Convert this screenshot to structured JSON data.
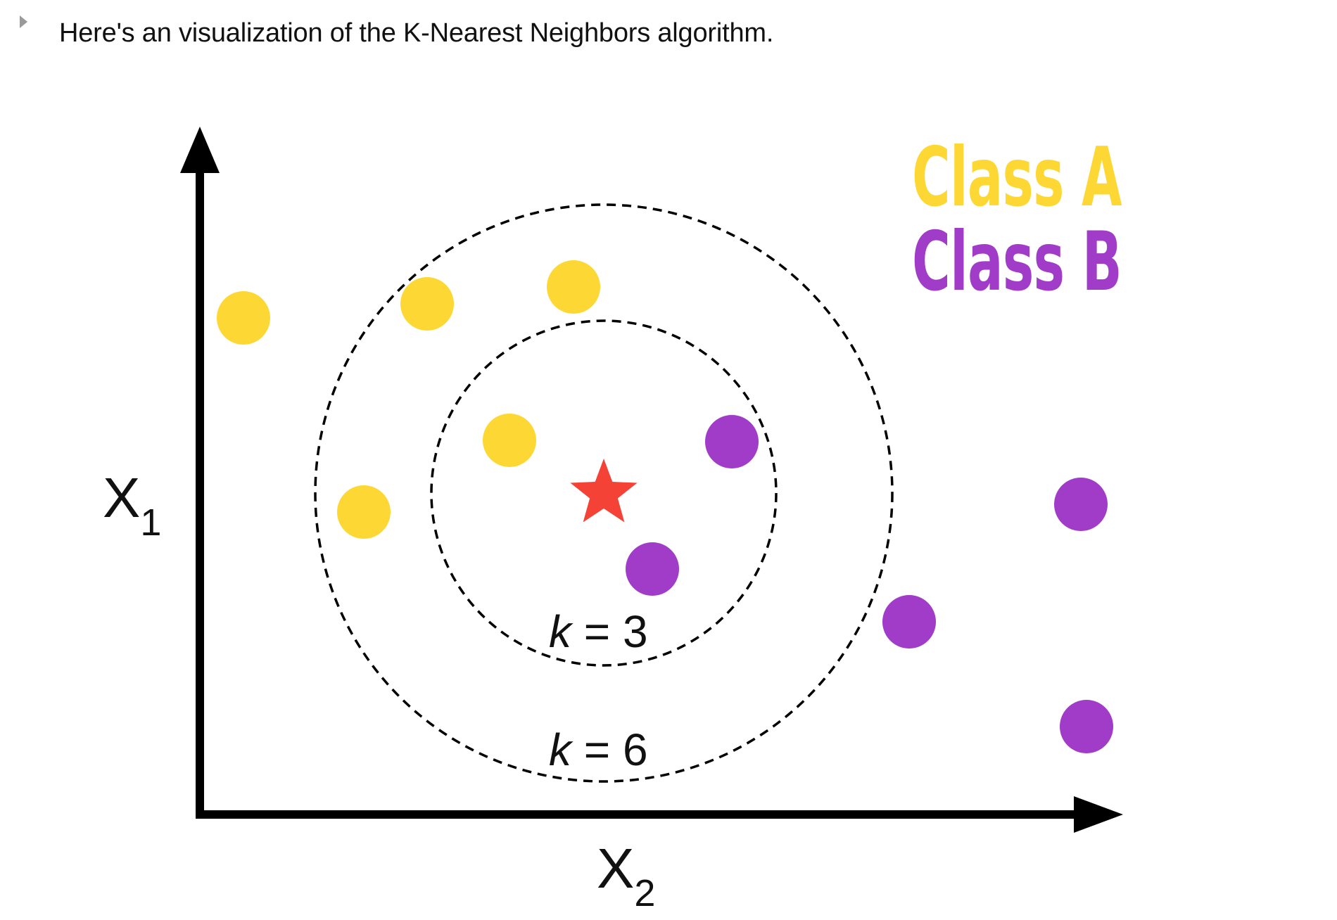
{
  "intro": {
    "text": "Here's an visualization of the K-Nearest Neighbors algorithm."
  },
  "diagram": {
    "axis_x_label": "X",
    "axis_x_subscript": "2",
    "axis_y_label": "X",
    "axis_y_subscript": "1",
    "k_labels": [
      {
        "k": "k",
        "rest": " = 3"
      },
      {
        "k": "k",
        "rest": " = 6"
      }
    ],
    "legend": [
      {
        "label": "Class A",
        "color": "#FDD835"
      },
      {
        "label": "Class B",
        "color": "#A03CC8"
      }
    ],
    "query_color": "#F44336",
    "axis_color": "#000000",
    "class_a_color": "#FDD835",
    "class_b_color": "#A03CC8"
  }
}
